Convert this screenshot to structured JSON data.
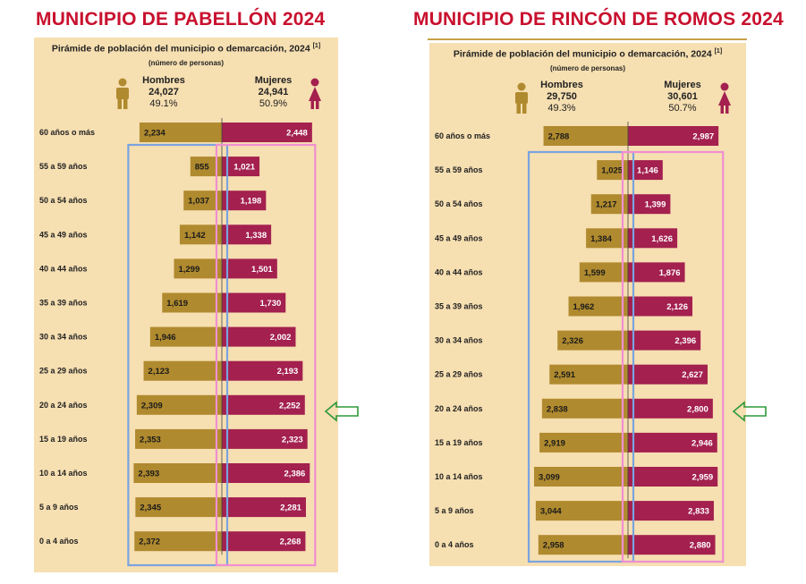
{
  "colors": {
    "title_red": "#c8102e",
    "panel_bg": "#f6dfb1",
    "men_bar": "#b08a2e",
    "women_bar": "#a3204f",
    "men_box": "#7aa3e0",
    "women_box": "#f08fd0",
    "arrow": "#2e9a3a"
  },
  "panels": [
    {
      "heading": "MUNICIPIO DE PABELLÓN 2024",
      "chart_title": "Pirámide de población del municipio o demarcación, 2024",
      "note_marker": "[1]",
      "chart_subtitle": "(número de personas)",
      "men": {
        "label": "Hombres",
        "total": "24,027",
        "percent": "49.1%",
        "icon": "man-icon"
      },
      "women": {
        "label": "Mujeres",
        "total": "24,941",
        "percent": "50.9%",
        "icon": "woman-icon"
      }
    },
    {
      "heading": "MUNICIPIO DE RINCÓN DE ROMOS 2024",
      "chart_title": "Pirámide de población del municipio o demarcación, 2024",
      "note_marker": "[1]",
      "chart_subtitle": "(número de personas)",
      "men": {
        "label": "Hombres",
        "total": "29,750",
        "percent": "49.3%",
        "icon": "man-icon"
      },
      "women": {
        "label": "Mujeres",
        "total": "30,601",
        "percent": "50.7%",
        "icon": "woman-icon"
      }
    }
  ],
  "chart_data": [
    {
      "type": "bar",
      "orientation": "population-pyramid",
      "title": "Pirámide de población del municipio o demarcación, 2024",
      "subtitle": "(número de personas)",
      "categories": [
        "60 años o más",
        "55 a 59 años",
        "50 a 54 años",
        "45 a 49 años",
        "40 a 44 años",
        "35 a 39 años",
        "30 a 34 años",
        "25 a 29 años",
        "20 a 24 años",
        "15 a 19 años",
        "10 a 14 años",
        "5 a 9 años",
        "0 a 4 años"
      ],
      "series": [
        {
          "name": "Hombres",
          "values": [
            2234,
            855,
            1037,
            1142,
            1299,
            1619,
            1946,
            2123,
            2309,
            2353,
            2393,
            2345,
            2372
          ],
          "labels": [
            "2,234",
            "855",
            "1,037",
            "1,142",
            "1,299",
            "1,619",
            "1,946",
            "2,123",
            "2,309",
            "2,353",
            "2,393",
            "2,345",
            "2,372"
          ]
        },
        {
          "name": "Mujeres",
          "values": [
            2448,
            1021,
            1198,
            1338,
            1501,
            1730,
            2002,
            2193,
            2252,
            2323,
            2386,
            2281,
            2268
          ],
          "labels": [
            "2,448",
            "1,021",
            "1,198",
            "1,338",
            "1,501",
            "1,730",
            "2,002",
            "2,193",
            "2,252",
            "2,323",
            "2,386",
            "2,281",
            "2,268"
          ]
        }
      ],
      "xlim": [
        0,
        2500
      ],
      "highlight_category": "20 a 24 años"
    },
    {
      "type": "bar",
      "orientation": "population-pyramid",
      "title": "Pirámide de población del municipio o demarcación, 2024",
      "subtitle": "(número de personas)",
      "categories": [
        "60 años o más",
        "55 a 59 años",
        "50 a 54 años",
        "45 a 49 años",
        "40 a 44 años",
        "35 a 39 años",
        "30 a 34 años",
        "25 a 29 años",
        "20 a 24 años",
        "15 a 19 años",
        "10 a 14 años",
        "5 a 9 años",
        "0 a 4 años"
      ],
      "series": [
        {
          "name": "Hombres",
          "values": [
            2788,
            1025,
            1217,
            1384,
            1599,
            1962,
            2326,
            2591,
            2838,
            2919,
            3099,
            3044,
            2958
          ],
          "labels": [
            "2,788",
            "1,025",
            "1,217",
            "1,384",
            "1,599",
            "1,962",
            "2,326",
            "2,591",
            "2,838",
            "2,919",
            "3,099",
            "3,044",
            "2,958"
          ]
        },
        {
          "name": "Mujeres",
          "values": [
            2987,
            1146,
            1399,
            1626,
            1876,
            2126,
            2396,
            2627,
            2800,
            2946,
            2959,
            2833,
            2880
          ],
          "labels": [
            "2,987",
            "1,146",
            "1,399",
            "1,626",
            "1,876",
            "2,126",
            "2,396",
            "2,627",
            "2,800",
            "2,946",
            "2,959",
            "2,833",
            "2,880"
          ]
        }
      ],
      "xlim": [
        0,
        3100
      ],
      "highlight_category": "20 a 24 años"
    }
  ]
}
